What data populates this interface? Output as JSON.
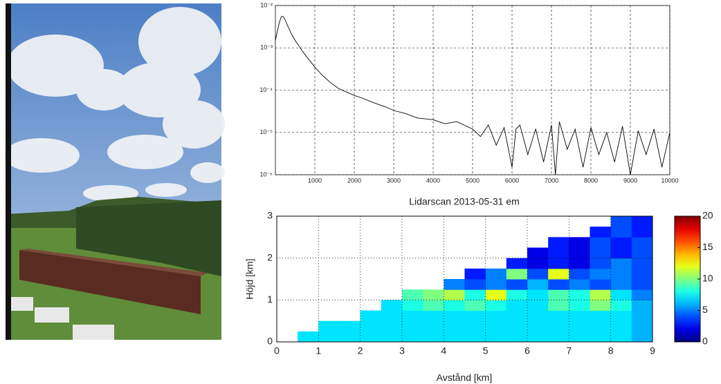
{
  "chart_data": [
    {
      "type": "line",
      "color": "#000000",
      "log_y": true,
      "grid": true,
      "xlim": [
        0,
        10000
      ],
      "xticks": [
        1000,
        2000,
        3000,
        4000,
        5000,
        6000,
        7000,
        8000,
        9000,
        10000
      ],
      "ylim": [
        1e-06,
        0.01
      ],
      "yticks": [
        {
          "value": 1e-06,
          "label": "10⁻⁶"
        },
        {
          "value": 1e-05,
          "label": "10⁻⁵"
        },
        {
          "value": 0.0001,
          "label": "10⁻⁴"
        },
        {
          "value": 0.001,
          "label": "10⁻³"
        },
        {
          "value": 0.01,
          "label": "10⁻²"
        }
      ],
      "x": [
        0,
        100,
        150,
        200,
        250,
        300,
        400,
        500,
        600,
        700,
        800,
        1000,
        1200,
        1400,
        1600,
        1800,
        2000,
        2200,
        2500,
        2800,
        3000,
        3300,
        3600,
        4000,
        4300,
        4600,
        5000,
        5200,
        5400,
        5600,
        5800,
        6000,
        6100,
        6200,
        6400,
        6600,
        6800,
        7000,
        7100,
        7200,
        7400,
        7600,
        7800,
        8000,
        8200,
        8400,
        8600,
        8800,
        9000,
        9200,
        9400,
        9600,
        9800,
        10000
      ],
      "values": [
        0.0015,
        0.004,
        0.0055,
        0.0055,
        0.0045,
        0.0035,
        0.0022,
        0.0015,
        0.0011,
        0.0008,
        0.0006,
        0.00035,
        0.00022,
        0.00015,
        0.00011,
        9e-05,
        7.5e-05,
        6.5e-05,
        5e-05,
        4e-05,
        3.3e-05,
        2.8e-05,
        2.2e-05,
        2e-05,
        1.6e-05,
        1.8e-05,
        1.2e-05,
        8e-06,
        1.5e-05,
        5e-06,
        1.3e-05,
        1.5e-06,
        1.2e-05,
        1.5e-05,
        3e-06,
        1.2e-05,
        2e-06,
        1.5e-05,
        1e-06,
        1.8e-05,
        4e-06,
        1.2e-05,
        1.5e-06,
        1.3e-05,
        3e-06,
        1e-05,
        2e-06,
        1.4e-05,
        1e-06,
        1.1e-05,
        3e-06,
        1.2e-05,
        1.5e-06,
        1e-05
      ]
    },
    {
      "type": "heatmap",
      "title": "Lidarscan 2013-05-31 em",
      "xlabel": "Avstånd [km]",
      "ylabel": "Höjd [km]",
      "colormap": "jet",
      "grid": true,
      "xlim": [
        0,
        9
      ],
      "xticks": [
        0,
        1,
        2,
        3,
        4,
        5,
        6,
        7,
        8,
        9
      ],
      "ylim": [
        0,
        3
      ],
      "yticks": [
        0,
        1,
        2,
        3
      ],
      "colorbar": {
        "lim": [
          0,
          20
        ],
        "ticks": [
          0,
          5,
          10,
          15,
          20
        ]
      },
      "x": [
        0.25,
        0.75,
        1.25,
        1.75,
        2.25,
        2.75,
        3.25,
        3.75,
        4.25,
        4.75,
        5.25,
        5.75,
        6.25,
        6.75,
        7.25,
        7.75,
        8.25,
        8.75
      ],
      "y": [
        0.125,
        0.375,
        0.625,
        0.875,
        1.125,
        1.375,
        1.625,
        1.875,
        2.125,
        2.375,
        2.625,
        2.875
      ],
      "z": [
        [
          null,
          7,
          7,
          7,
          7,
          7,
          7,
          7,
          7,
          7,
          7,
          7,
          7,
          7,
          7,
          7,
          7,
          6
        ],
        [
          null,
          null,
          7,
          7,
          7,
          7,
          7,
          7,
          7,
          7,
          7,
          7,
          7,
          7,
          7,
          7,
          7,
          6
        ],
        [
          null,
          null,
          null,
          null,
          7,
          7,
          7,
          7,
          7,
          7,
          7,
          7,
          7,
          7,
          7,
          7,
          7,
          6
        ],
        [
          null,
          null,
          null,
          null,
          null,
          7,
          8,
          9,
          8,
          9,
          8,
          7,
          7,
          9,
          8,
          10,
          8,
          6
        ],
        [
          null,
          null,
          null,
          null,
          null,
          null,
          9,
          10,
          11,
          8,
          12,
          8,
          7,
          9,
          8,
          11,
          7,
          5
        ],
        [
          null,
          null,
          null,
          null,
          null,
          null,
          null,
          null,
          5,
          4,
          5,
          4,
          6,
          4,
          5,
          4,
          5,
          4
        ],
        [
          null,
          null,
          null,
          null,
          null,
          null,
          null,
          null,
          null,
          3,
          5,
          10,
          4,
          12,
          4,
          5,
          5,
          4
        ],
        [
          null,
          null,
          null,
          null,
          null,
          null,
          null,
          null,
          null,
          null,
          null,
          3,
          2,
          3,
          2,
          4,
          5,
          4
        ],
        [
          null,
          null,
          null,
          null,
          null,
          null,
          null,
          null,
          null,
          null,
          null,
          null,
          2,
          3,
          2,
          4,
          3,
          4
        ],
        [
          null,
          null,
          null,
          null,
          null,
          null,
          null,
          null,
          null,
          null,
          null,
          null,
          null,
          3,
          2,
          4,
          3,
          4
        ],
        [
          null,
          null,
          null,
          null,
          null,
          null,
          null,
          null,
          null,
          null,
          null,
          null,
          null,
          null,
          null,
          3,
          4,
          3
        ],
        [
          null,
          null,
          null,
          null,
          null,
          null,
          null,
          null,
          null,
          null,
          null,
          null,
          null,
          null,
          null,
          null,
          4,
          3
        ]
      ]
    }
  ]
}
